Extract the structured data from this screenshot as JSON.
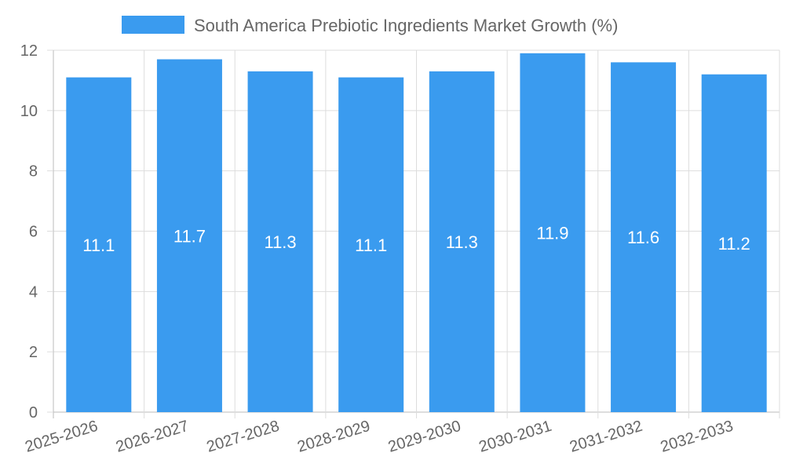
{
  "chart_data": {
    "type": "bar",
    "categories": [
      "2025-2026",
      "2026-2027",
      "2027-2028",
      "2028-2029",
      "2029-2030",
      "2030-2031",
      "2031-2032",
      "2032-2033"
    ],
    "series": [
      {
        "name": "South America Prebiotic Ingredients Market Growth (%)",
        "values": [
          11.1,
          11.7,
          11.3,
          11.1,
          11.3,
          11.9,
          11.6,
          11.2
        ],
        "color": "#3a9bef"
      }
    ],
    "ylim": [
      0,
      12
    ],
    "yticks": [
      0,
      2,
      4,
      6,
      8,
      10,
      12
    ],
    "grid": true,
    "legend": "top-center",
    "data_labels": [
      "11.1",
      "11.7",
      "11.3",
      "11.1",
      "11.3",
      "11.9",
      "11.6",
      "11.2"
    ]
  }
}
